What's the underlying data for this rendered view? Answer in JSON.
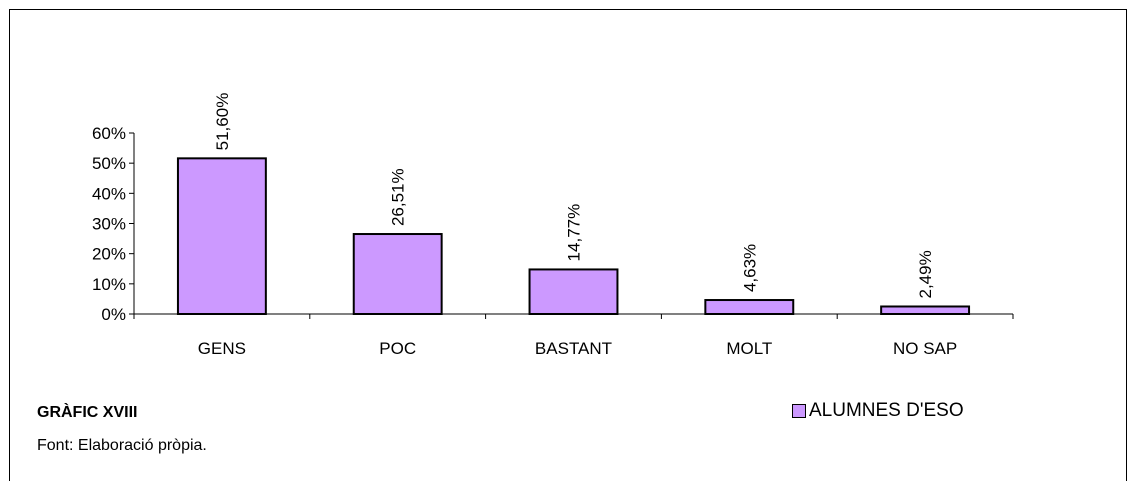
{
  "chart_data": {
    "type": "bar",
    "categories": [
      "GENS",
      "POC",
      "BASTANT",
      "MOLT",
      "NO SAP"
    ],
    "series": [
      {
        "name": "ALUMNES D'ESO",
        "values": [
          51.6,
          26.51,
          14.77,
          4.63,
          2.49
        ]
      }
    ],
    "data_labels": [
      "51,60%",
      "26,51%",
      "14,77%",
      "4,63%",
      "2,49%"
    ],
    "y_ticks": [
      0,
      10,
      20,
      30,
      40,
      50,
      60
    ],
    "y_tick_labels": [
      "0%",
      "10%",
      "20%",
      "30%",
      "40%",
      "50%",
      "60%"
    ],
    "ylim": [
      0,
      60
    ],
    "legend_position": "bottom-right",
    "grid": false,
    "bar_color": "#cc99ff"
  },
  "caption": {
    "title": "GRÀFIC XVIII",
    "source": "Font: Elaboració pròpia."
  }
}
